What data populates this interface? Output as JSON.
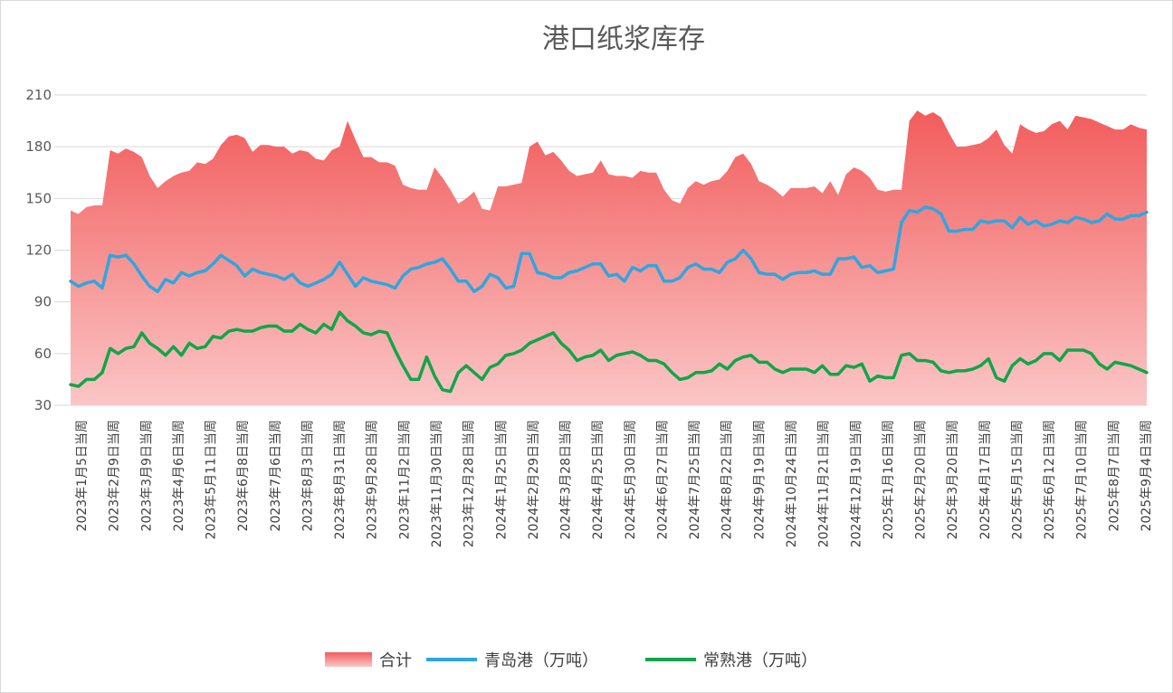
{
  "chart_data": {
    "type": "line",
    "title": "港口纸浆库存",
    "xlabel": "",
    "ylabel": "",
    "ylim": [
      30,
      210
    ],
    "yticks": [
      30,
      60,
      90,
      120,
      150,
      180,
      210
    ],
    "grid": "horizontal",
    "legend_position": "bottom",
    "x_tick_labels": [
      "2023年1月5日当周",
      "2023年2月9日当周",
      "2023年3月9日当周",
      "2023年4月6日当周",
      "2023年5月11日当周",
      "2023年6月8日当周",
      "2023年7月6日当周",
      "2023年8月3日当周",
      "2023年8月31日当周",
      "2023年9月28日当周",
      "2023年11月2日当周",
      "2023年11月30日当周",
      "2023年12月28日当周",
      "2024年1月25日当周",
      "2024年2月29日当周",
      "2024年3月28日当周",
      "2024年4月25日当周",
      "2024年5月30日当周",
      "2024年6月27日当周",
      "2024年7月25日当周",
      "2024年8月22日当周",
      "2024年9月19日当周",
      "2024年10月24日当周",
      "2024年11月21日当周",
      "2024年12月19日当周",
      "2025年1月16日当周",
      "2025年2月20日当周",
      "2025年3月20日当周",
      "2025年4月17日当周",
      "2025年5月15日当周",
      "2025年6月12日当周",
      "2025年7月10日当周",
      "2025年8月7日当周",
      "2025年9月4日当周"
    ],
    "series": [
      {
        "name": "合计",
        "style": "area",
        "color": "#f47676",
        "values": [
          143,
          141,
          145,
          146,
          146,
          178,
          176,
          179,
          177,
          174,
          163,
          156,
          160,
          163,
          165,
          166,
          171,
          170,
          173,
          181,
          186,
          187,
          185,
          177,
          181,
          181,
          180,
          180,
          176,
          178,
          177,
          173,
          172,
          178,
          180,
          195,
          184,
          174,
          174,
          171,
          171,
          169,
          158,
          156,
          155,
          155,
          168,
          162,
          155,
          147,
          150,
          154,
          144,
          143,
          157,
          157,
          158,
          159,
          180,
          183,
          175,
          177,
          172,
          166,
          163,
          164,
          165,
          172,
          164,
          163,
          163,
          162,
          166,
          165,
          165,
          155,
          149,
          147,
          156,
          160,
          158,
          160,
          161,
          166,
          174,
          176,
          170,
          160,
          158,
          155,
          151,
          156,
          156,
          156,
          157,
          153,
          160,
          152,
          164,
          168,
          166,
          162,
          155,
          154,
          155,
          155,
          195,
          201,
          198,
          200,
          197,
          188,
          180,
          180,
          181,
          182,
          185,
          190,
          181,
          176,
          193,
          190,
          188,
          189,
          193,
          195,
          190,
          198,
          197,
          196,
          194,
          192,
          190,
          190,
          193,
          191,
          190
        ]
      },
      {
        "name": "青岛港（万吨）",
        "style": "line",
        "color": "#2ea6e0",
        "values": [
          102,
          99,
          101,
          102,
          98,
          117,
          116,
          117,
          112,
          105,
          99,
          96,
          103,
          101,
          107,
          105,
          107,
          108,
          112,
          117,
          114,
          111,
          105,
          109,
          107,
          106,
          105,
          103,
          106,
          101,
          99,
          101,
          103,
          106,
          113,
          106,
          99,
          104,
          102,
          101,
          100,
          98,
          105,
          109,
          110,
          112,
          113,
          115,
          109,
          102,
          102,
          96,
          99,
          106,
          104,
          98,
          99,
          118,
          118,
          107,
          106,
          104,
          104,
          107,
          108,
          110,
          112,
          112,
          105,
          106,
          102,
          110,
          108,
          111,
          111,
          102,
          102,
          104,
          110,
          112,
          109,
          109,
          107,
          113,
          115,
          120,
          115,
          107,
          106,
          106,
          103,
          106,
          107,
          107,
          108,
          106,
          106,
          115,
          115,
          116,
          110,
          111,
          107,
          108,
          109,
          136,
          143,
          142,
          145,
          144,
          141,
          131,
          131,
          132,
          132,
          137,
          136,
          137,
          137,
          133,
          139,
          135,
          137,
          134,
          135,
          137,
          136,
          139,
          138,
          136,
          137,
          141,
          138,
          138,
          140,
          140,
          142
        ]
      },
      {
        "name": "常熟港（万吨）",
        "style": "line",
        "color": "#0fa64a",
        "values": [
          42,
          41,
          45,
          45,
          49,
          63,
          60,
          63,
          64,
          72,
          66,
          63,
          59,
          64,
          59,
          66,
          63,
          64,
          70,
          69,
          73,
          74,
          73,
          73,
          75,
          76,
          76,
          73,
          73,
          77,
          74,
          72,
          77,
          74,
          84,
          79,
          76,
          72,
          71,
          73,
          72,
          62,
          53,
          45,
          45,
          58,
          47,
          39,
          38,
          49,
          53,
          49,
          45,
          52,
          54,
          59,
          60,
          62,
          66,
          68,
          70,
          72,
          66,
          62,
          56,
          58,
          59,
          62,
          56,
          59,
          60,
          61,
          59,
          56,
          56,
          54,
          49,
          45,
          46,
          49,
          49,
          50,
          54,
          51,
          56,
          58,
          59,
          55,
          55,
          51,
          49,
          51,
          51,
          51,
          49,
          53,
          48,
          48,
          53,
          52,
          54,
          44,
          47,
          46,
          46,
          59,
          60,
          56,
          56,
          55,
          50,
          49,
          50,
          50,
          51,
          53,
          57,
          46,
          44,
          53,
          57,
          54,
          56,
          60,
          60,
          56,
          62,
          62,
          62,
          60,
          54,
          51,
          55,
          54,
          53,
          51,
          49
        ]
      }
    ]
  }
}
